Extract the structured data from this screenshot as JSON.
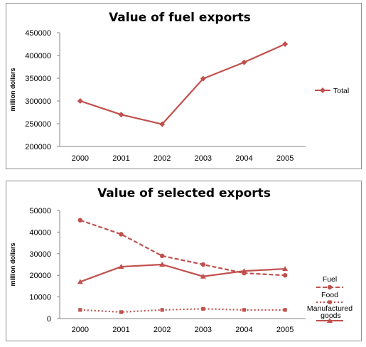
{
  "chart_data": [
    {
      "type": "line",
      "title": "Value of fuel exports",
      "xlabel": "",
      "ylabel": "million dollars",
      "categories": [
        "2000",
        "2001",
        "2002",
        "2003",
        "2004",
        "2005"
      ],
      "ylim": [
        200000,
        450000
      ],
      "yticks": [
        200000,
        250000,
        300000,
        350000,
        400000,
        450000
      ],
      "grid": false,
      "legend_position": "right",
      "series": [
        {
          "name": "Total",
          "values": [
            300000,
            270000,
            249000,
            349000,
            385000,
            425000
          ],
          "style": "solid",
          "marker": "diamond",
          "color": "#c0504d"
        }
      ]
    },
    {
      "type": "line",
      "title": "Value of selected exports",
      "xlabel": "",
      "ylabel": "million dollars",
      "categories": [
        "2000",
        "2001",
        "2002",
        "2003",
        "2004",
        "2005"
      ],
      "ylim": [
        0,
        50000
      ],
      "yticks": [
        0,
        10000,
        20000,
        30000,
        40000,
        50000
      ],
      "grid": false,
      "legend_position": "right",
      "series": [
        {
          "name": "Fuel",
          "values": [
            45500,
            39000,
            29000,
            25000,
            21000,
            20000
          ],
          "style": "dashed",
          "marker": "circle",
          "color": "#c0504d"
        },
        {
          "name": "Food",
          "values": [
            4000,
            3000,
            4000,
            4500,
            4000,
            4000
          ],
          "style": "dotted",
          "marker": "square",
          "color": "#c0504d"
        },
        {
          "name": "Manufactured goods",
          "values": [
            17000,
            24000,
            25000,
            19500,
            22000,
            23000
          ],
          "style": "solid",
          "marker": "triangle",
          "color": "#c0504d"
        }
      ]
    }
  ]
}
